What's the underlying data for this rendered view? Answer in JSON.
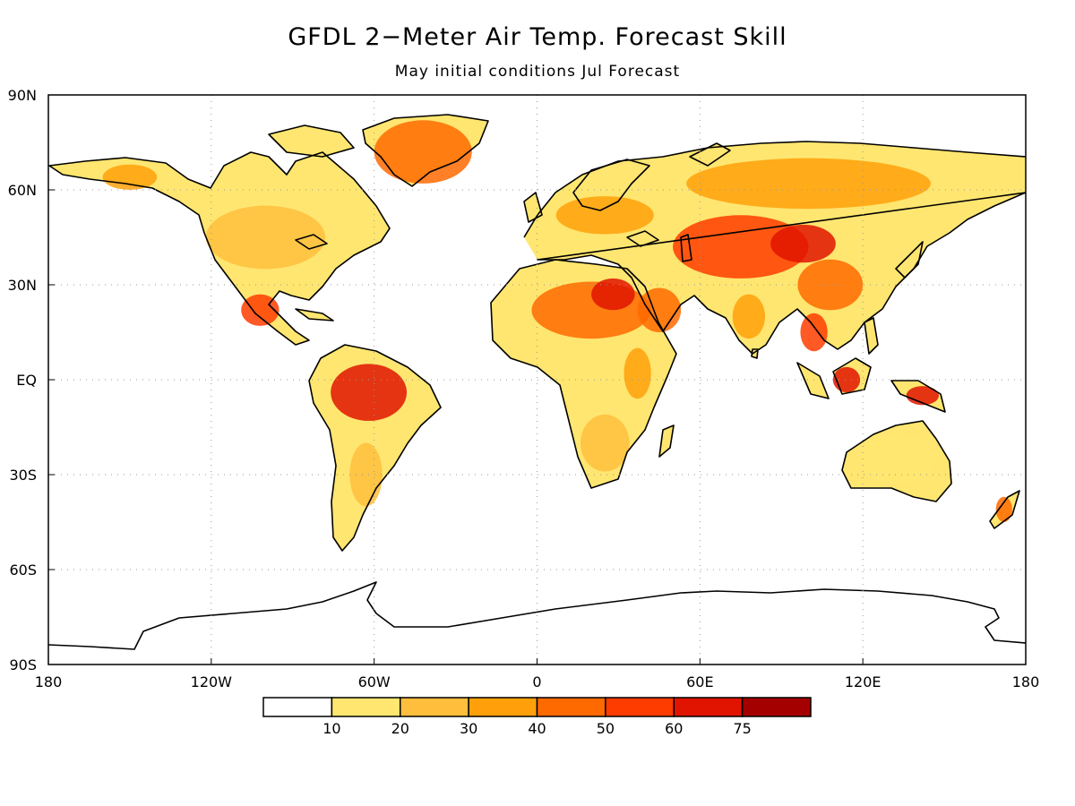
{
  "title": "GFDL 2−Meter Air Temp. Forecast Skill",
  "subtitle": "May initial conditions   Jul Forecast",
  "map": {
    "lon_range": [
      -180,
      180
    ],
    "lat_range": [
      -90,
      90
    ],
    "lon_ticks": [
      {
        "value": -180,
        "label": "180"
      },
      {
        "value": -120,
        "label": "120W"
      },
      {
        "value": -60,
        "label": "60W"
      },
      {
        "value": 0,
        "label": "0"
      },
      {
        "value": 60,
        "label": "60E"
      },
      {
        "value": 120,
        "label": "120E"
      },
      {
        "value": 180,
        "label": "180"
      }
    ],
    "lat_ticks": [
      {
        "value": 90,
        "label": "90N"
      },
      {
        "value": 60,
        "label": "60N"
      },
      {
        "value": 30,
        "label": "30N"
      },
      {
        "value": 0,
        "label": "EQ"
      },
      {
        "value": -30,
        "label": "30S"
      },
      {
        "value": -60,
        "label": "60S"
      },
      {
        "value": -90,
        "label": "90S"
      }
    ],
    "grid": "dotted"
  },
  "legend": {
    "colors": [
      "#ffffff",
      "#ffe670",
      "#ffbe3c",
      "#ffa00a",
      "#ff6a00",
      "#ff3c00",
      "#e01400",
      "#a50000"
    ],
    "labels": [
      "10",
      "20",
      "30",
      "40",
      "50",
      "60",
      "75"
    ]
  },
  "regions": [
    {
      "name": "Greenland",
      "lon": -42,
      "lat": 72,
      "rx": 18,
      "ry": 10,
      "color": "#ff6a00"
    },
    {
      "name": "Amazon",
      "lon": -62,
      "lat": -4,
      "rx": 14,
      "ry": 9,
      "color": "#e01400"
    },
    {
      "name": "Sahara",
      "lon": 20,
      "lat": 22,
      "rx": 22,
      "ry": 9,
      "color": "#ff6a00"
    },
    {
      "name": "Egypt",
      "lon": 28,
      "lat": 27,
      "rx": 8,
      "ry": 5,
      "color": "#e01400"
    },
    {
      "name": "Central Asia",
      "lon": 75,
      "lat": 42,
      "rx": 25,
      "ry": 10,
      "color": "#ff3c00"
    },
    {
      "name": "Mongolia",
      "lon": 98,
      "lat": 43,
      "rx": 12,
      "ry": 6,
      "color": "#e01400"
    },
    {
      "name": "Siberia",
      "lon": 100,
      "lat": 62,
      "rx": 45,
      "ry": 8,
      "color": "#ffa00a"
    },
    {
      "name": "Europe",
      "lon": 25,
      "lat": 52,
      "rx": 18,
      "ry": 6,
      "color": "#ffa00a"
    },
    {
      "name": "Borneo",
      "lon": 114,
      "lat": 0,
      "rx": 5,
      "ry": 4,
      "color": "#e01400"
    },
    {
      "name": "New Guinea",
      "lon": 142,
      "lat": -5,
      "rx": 6,
      "ry": 3,
      "color": "#e01400"
    },
    {
      "name": "Mexico",
      "lon": -102,
      "lat": 22,
      "rx": 7,
      "ry": 5,
      "color": "#ff3c00"
    },
    {
      "name": "North America",
      "lon": -100,
      "lat": 45,
      "rx": 22,
      "ry": 10,
      "color": "#ffbe3c"
    },
    {
      "name": "Southern Africa",
      "lon": 25,
      "lat": -20,
      "rx": 9,
      "ry": 9,
      "color": "#ffbe3c"
    },
    {
      "name": "South America south",
      "lon": -63,
      "lat": -30,
      "rx": 6,
      "ry": 10,
      "color": "#ffbe3c"
    },
    {
      "name": "Arabia",
      "lon": 45,
      "lat": 22,
      "rx": 8,
      "ry": 7,
      "color": "#ff6a00"
    },
    {
      "name": "India",
      "lon": 78,
      "lat": 20,
      "rx": 6,
      "ry": 7,
      "color": "#ffa00a"
    },
    {
      "name": "China",
      "lon": 108,
      "lat": 30,
      "rx": 12,
      "ry": 8,
      "color": "#ff6a00"
    },
    {
      "name": "Australia",
      "lon": 133,
      "lat": -25,
      "rx": 14,
      "ry": 8,
      "color": "#ffe670"
    },
    {
      "name": "Southeast Asia",
      "lon": 102,
      "lat": 15,
      "rx": 5,
      "ry": 6,
      "color": "#ff3c00"
    },
    {
      "name": "Alaska",
      "lon": -150,
      "lat": 64,
      "rx": 10,
      "ry": 4,
      "color": "#ffa00a"
    },
    {
      "name": "New Zealand",
      "lon": 172,
      "lat": -41,
      "rx": 3,
      "ry": 4,
      "color": "#ff6a00"
    },
    {
      "name": "East Africa",
      "lon": 37,
      "lat": 2,
      "rx": 5,
      "ry": 8,
      "color": "#ffa00a"
    }
  ]
}
